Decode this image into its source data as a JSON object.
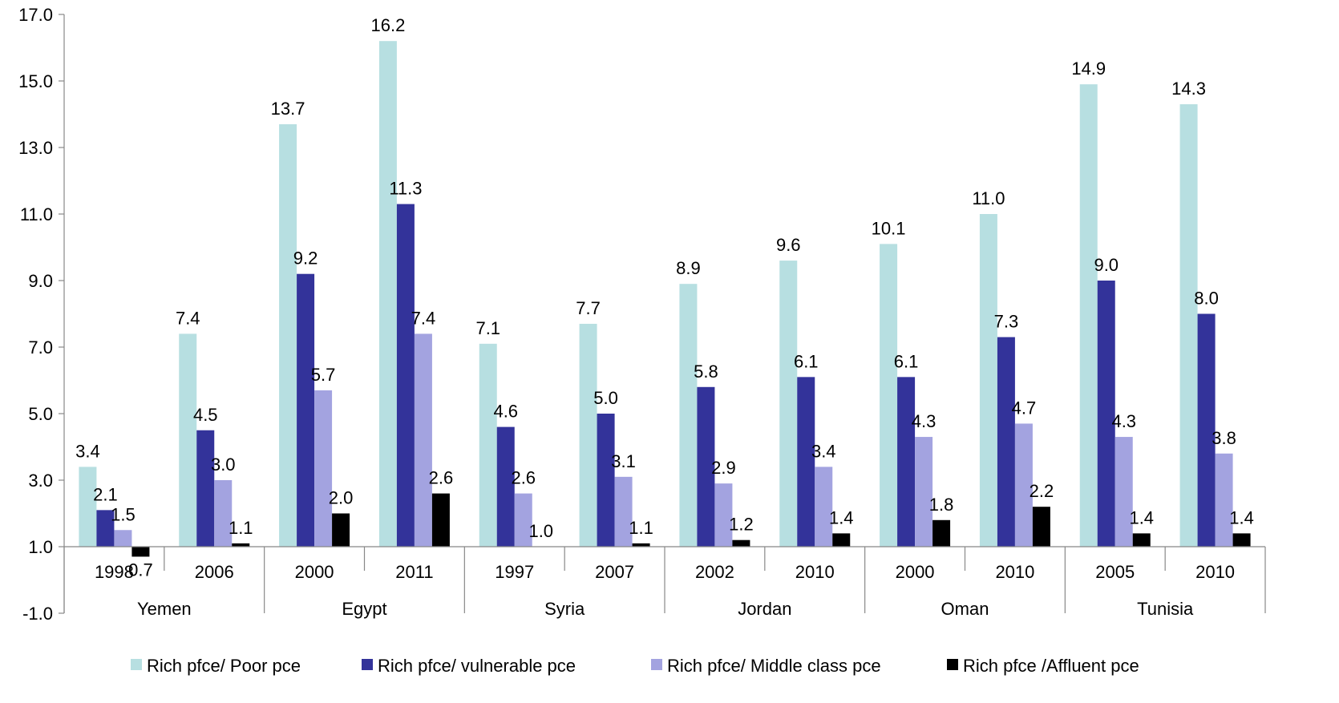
{
  "chart_data": {
    "type": "bar",
    "ylim": [
      -1.0,
      17.0
    ],
    "yticks": [
      "17.0",
      "15.0",
      "13.0",
      "11.0",
      "9.0",
      "7.0",
      "5.0",
      "3.0",
      "1.0",
      "-1.0"
    ],
    "groups": [
      {
        "country": "Yemen",
        "years": [
          "1998",
          "2006"
        ]
      },
      {
        "country": "Egypt",
        "years": [
          "2000",
          "2011"
        ]
      },
      {
        "country": "Syria",
        "years": [
          "1997",
          "2007"
        ]
      },
      {
        "country": "Jordan",
        "years": [
          "2002",
          "2010"
        ]
      },
      {
        "country": "Oman",
        "years": [
          "2000",
          "2010"
        ]
      },
      {
        "country": "Tunisia",
        "years": [
          "2005",
          "2010"
        ]
      }
    ],
    "series": [
      {
        "name": "Rich pfce/ Poor pce",
        "color": "#b7dfe1",
        "values": [
          3.4,
          7.4,
          13.7,
          16.2,
          7.1,
          7.7,
          8.9,
          9.6,
          10.1,
          11.0,
          14.9,
          14.3
        ],
        "labels": [
          "3.4",
          "7.4",
          "13.7",
          "16.2",
          "7.1",
          "7.7",
          "8.9",
          "9.6",
          "10.1",
          "11.0",
          "14.9",
          "14.3"
        ]
      },
      {
        "name": "Rich pfce/ vulnerable pce",
        "color": "#33339a",
        "values": [
          2.1,
          4.5,
          9.2,
          11.3,
          4.6,
          5.0,
          5.8,
          6.1,
          6.1,
          7.3,
          9.0,
          8.0
        ],
        "labels": [
          "2.1",
          "4.5",
          "9.2",
          "11.3",
          "4.6",
          "5.0",
          "5.8",
          "6.1",
          "6.1",
          "7.3",
          "9.0",
          "8.0"
        ]
      },
      {
        "name": "Rich pfce/ Middle class pce",
        "color": "#a3a3e0",
        "values": [
          1.5,
          3.0,
          5.7,
          7.4,
          2.6,
          3.1,
          2.9,
          3.4,
          4.3,
          4.7,
          4.3,
          3.8
        ],
        "labels": [
          "1.5",
          "3.0",
          "5.7",
          "7.4",
          "2.6",
          "3.1",
          "2.9",
          "3.4",
          "4.3",
          "4.7",
          "4.3",
          "3.8"
        ]
      },
      {
        "name": "Rich pfce /Affluent pce",
        "color": "#000000",
        "values": [
          0.7,
          1.1,
          2.0,
          2.6,
          1.0,
          1.1,
          1.2,
          1.4,
          1.8,
          2.2,
          1.4,
          1.4
        ],
        "labels": [
          "0.7",
          "1.1",
          "2.0",
          "2.6",
          "1.0",
          "1.1",
          "1.2",
          "1.4",
          "1.8",
          "2.2",
          "1.4",
          "1.4"
        ]
      }
    ],
    "legend_position": "bottom",
    "grid": false
  }
}
